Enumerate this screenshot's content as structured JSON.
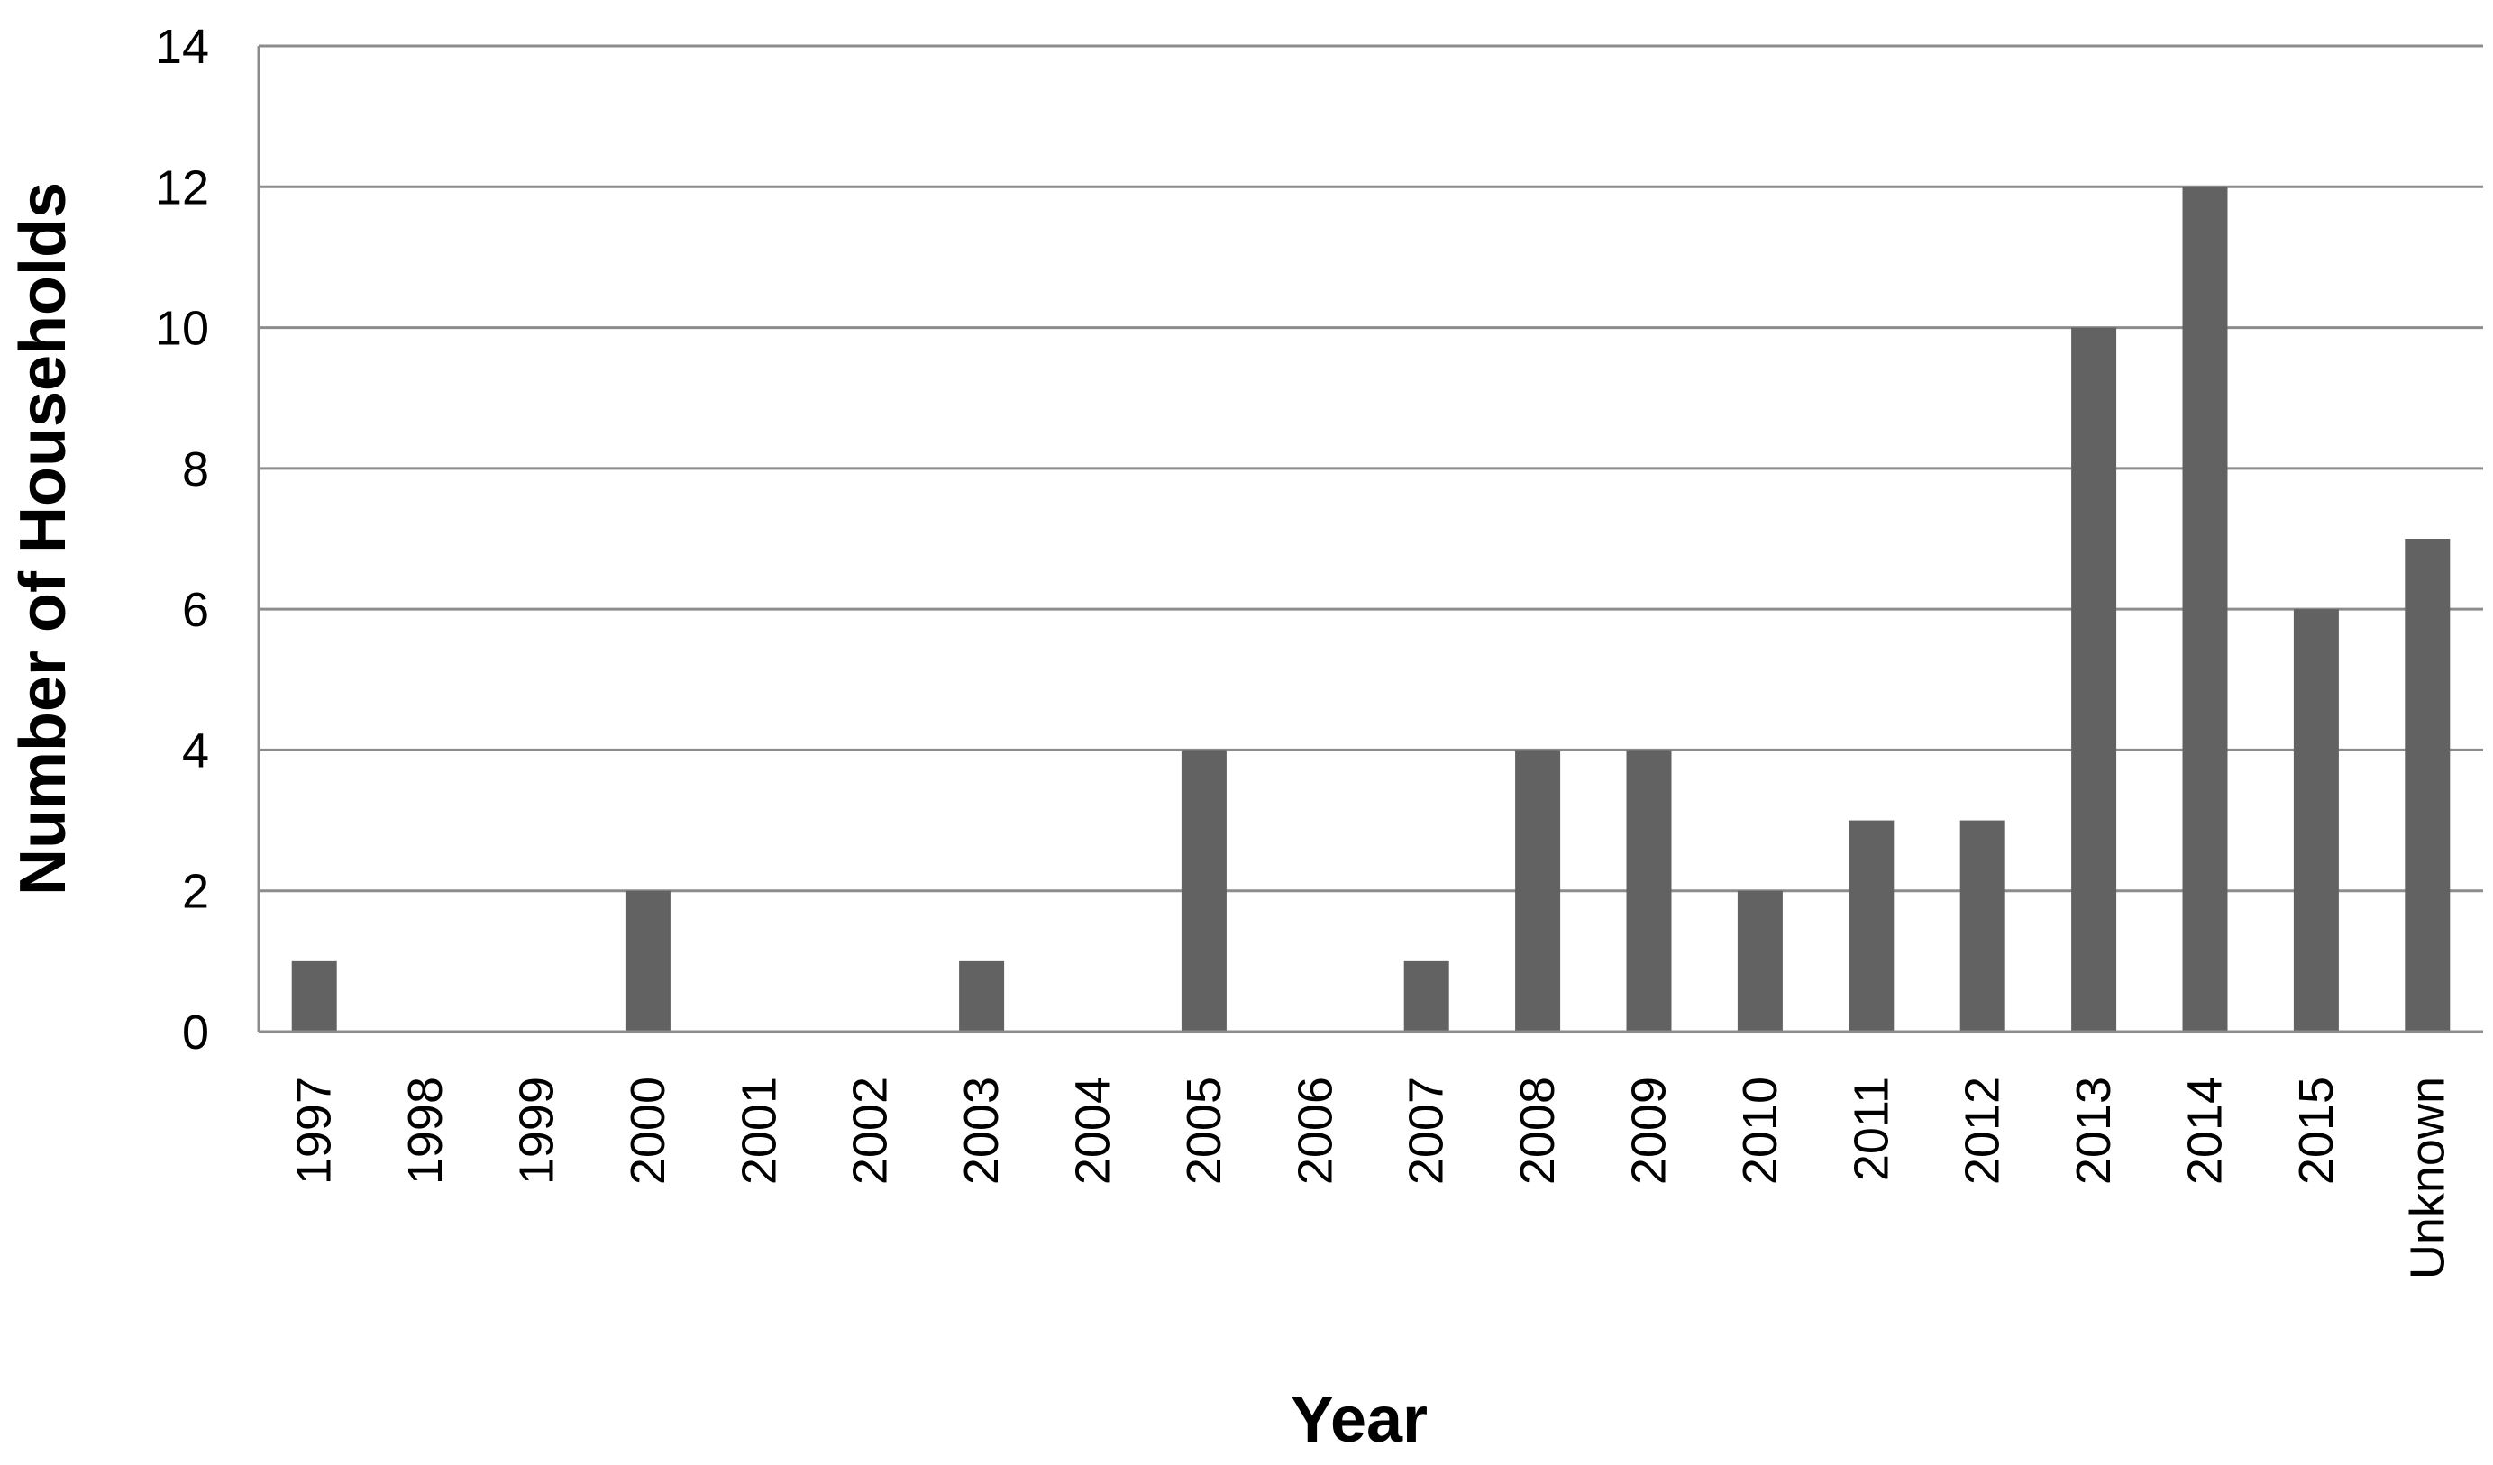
{
  "chart_data": {
    "type": "bar",
    "title": "",
    "xlabel": "Year",
    "ylabel": "Number of Households",
    "ylim": [
      0,
      14
    ],
    "yticks": [
      0,
      2,
      4,
      6,
      8,
      10,
      12,
      14
    ],
    "grid": "horizontal",
    "legend": "none",
    "categories": [
      "1997",
      "1998",
      "1999",
      "2000",
      "2001",
      "2002",
      "2003",
      "2004",
      "2005",
      "2006",
      "2007",
      "2008",
      "2009",
      "2010",
      "2011",
      "2012",
      "2013",
      "2014",
      "2015",
      "Unknown"
    ],
    "series": [
      {
        "values": [
          1,
          0,
          0,
          2,
          0,
          0,
          1,
          0,
          4,
          0,
          1,
          4,
          4,
          2,
          3,
          3,
          10,
          12,
          6,
          7
        ]
      }
    ],
    "colors": {
      "bar": "#626262",
      "grid": "#8c8c8c",
      "axis": "#8c8c8c",
      "text": "#000000"
    }
  }
}
